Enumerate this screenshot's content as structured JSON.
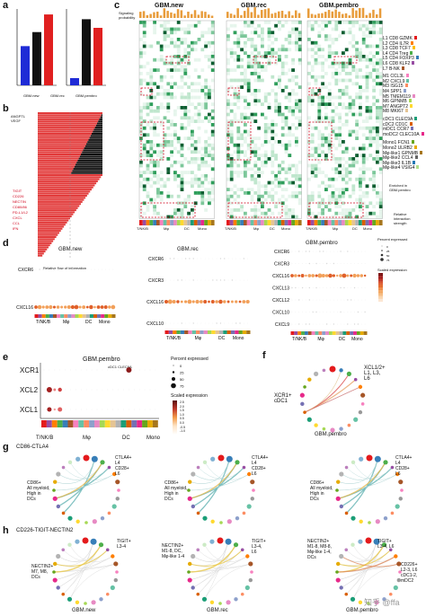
{
  "panels": {
    "a": {
      "label": "a",
      "chart1": {
        "ylabel": "Number of inferred interactions",
        "bars": [
          {
            "name": "GBM.new",
            "value": 1200,
            "color": "#1f2bd6"
          },
          {
            "name": "GBM.rec",
            "value": 1630,
            "color": "#111111"
          },
          {
            "name": "GBM.pembro",
            "value": 2170,
            "color": "#e02020"
          }
        ],
        "ymax": 2200
      },
      "chart2": {
        "ylabel": "Interaction strength",
        "bars": [
          {
            "name": "GBM.new",
            "value": 0.05,
            "color": "#1f2bd6"
          },
          {
            "name": "GBM.rec",
            "value": 0.46,
            "color": "#111111"
          },
          {
            "name": "GBM.pembro",
            "value": 0.4,
            "color": "#e02020"
          }
        ],
        "ymax": 0.5
      },
      "legend": [
        "GBM.new",
        "GBM.rec",
        "GBM.pembro"
      ]
    },
    "b": {
      "label": "b",
      "top_labels": [
        "ANGPTL",
        "VEGF"
      ],
      "red_labels": [
        "TIGIT",
        "CD226",
        "NECTIN",
        "CD80/86",
        "PD-L1/L2",
        "CXCL",
        "CCL",
        "IFN"
      ],
      "xlabel": "Relative flow of information"
    },
    "c": {
      "label": "c",
      "titles": [
        "GBM.new",
        "GBM.rec",
        "GBM.pembro"
      ],
      "ylabel": "Signaling probability",
      "xgroups": [
        "T/NK/B",
        "Mφ",
        "DC",
        "Mono"
      ],
      "legend": [
        "L1 CD8 GZMK",
        "L2 CD4 IL7R",
        "L3 CD8 TCF7",
        "L4 CD4 Treg",
        "L5 CD4 FOXP3",
        "L6 CD8 KLF2",
        "L7 B-NK",
        "M1 CCL3L",
        "M2 CXCL9",
        "M3 ISG15",
        "M4 SPP1",
        "M5 TMEM119",
        "M6 GPNMB",
        "M7 ANGPT2",
        "M8 MKI67",
        "cDC1 CLEC9A",
        "cDC2 CD1C",
        "mDC1 CCR7",
        "moDC2 CLEC10A",
        "Mono1 FCN1",
        "Mono2 ULRB2",
        "Mφ-like1 GPNMB",
        "Mφ-like2 CCL4",
        "Mφ-like3 IL1B",
        "Mφ-like4 VSIG4"
      ],
      "enriched_label": "Enriched in GBM.pembro",
      "strength_label": "Relative interaction strength"
    },
    "d": {
      "label": "d",
      "titles": [
        "GBM.new",
        "GBM.rec",
        "GBM.pembro"
      ],
      "rows_new": [
        "CXCR6",
        "CXCL16"
      ],
      "rows_rec": [
        "CXCR6",
        "CXCR3",
        "CXCL16",
        "CXCL10"
      ],
      "rows_pembro": [
        "CXCR6",
        "CXCR3",
        "CXCL16",
        "CXCL13",
        "CXCL12",
        "CXCL10",
        "CXCL9"
      ],
      "xgroups": [
        "T/NK/B",
        "Mφ",
        "DC",
        "Mono"
      ],
      "pct_title": "Percent expressed",
      "pct_values": [
        "0",
        "25",
        "50",
        "75"
      ],
      "scale_title": "Scaled expression"
    },
    "e": {
      "label": "e",
      "title": "GBM.pembro",
      "annotation": "cDC1 CLEC9A",
      "rows": [
        "XCR1",
        "XCL2",
        "XCL1"
      ],
      "xgroups": [
        "T/NK/B",
        "Mφ",
        "DC",
        "Mono"
      ],
      "pct_title": "Percent expressed",
      "pct_values": [
        "0",
        "25",
        "50",
        "75"
      ],
      "scale_title": "Scaled expression",
      "scale_values": [
        "2.5",
        "2.0",
        "1.5",
        "1.0",
        "0.5",
        "0.0",
        "-0.5",
        "-1.0"
      ]
    },
    "f": {
      "label": "f",
      "left_label": "XCR1+\ncDC1",
      "right_label": "XCL1/2+\nL1, L3,\nL6",
      "caption": "GBM.pembro"
    },
    "g": {
      "label": "g",
      "title": "CD86-CTLA4",
      "labels_top": "CTLA4+\nL4\nCD28+\nL6",
      "labels_left": "CD86+\nAll myeloid,\nHigh in\nDCs"
    },
    "h": {
      "label": "h",
      "title": "CD226-TIGIT-NECTIN2",
      "new_left": "NECTIN2+\nM7, M8,\nDCs",
      "new_right": "TIGIT+\nL3-4",
      "rec_left": "NECTIN2+\nM1-8, DC,\nMφ-like 1-4",
      "rec_right": "TIGIT+\nL3-4,\nL6",
      "pembro_left": "NECTIN2+\nM1-8, M8-8,\nMφ-like 1-4,\nDCs",
      "pembro_right": "CD226+\nL2-3, L6\ncDC1-2,\nmDC2",
      "pembro_tigit": "TIGIT+\nL3-4, L6",
      "captions": [
        "GBM.new",
        "GBM.rec",
        "GBM.pembro"
      ]
    },
    "watermark": "知乎 @ffa"
  }
}
